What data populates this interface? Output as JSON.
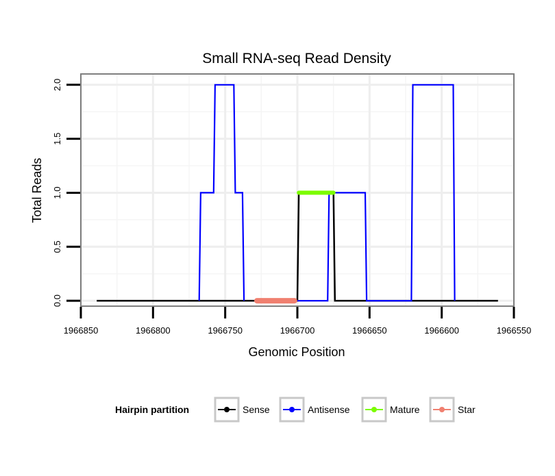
{
  "chart_data": {
    "type": "line",
    "title": "Small RNA-seq Read Density",
    "xlabel": "Genomic Position",
    "ylabel": "Total Reads",
    "xlim": [
      1966850,
      1966550
    ],
    "ylim": [
      -0.05,
      2.1
    ],
    "x_reversed": true,
    "x_ticks": [
      1966850,
      1966800,
      1966750,
      1966700,
      1966650,
      1966600,
      1966550
    ],
    "x_tick_labels": [
      "1966850",
      "1966800",
      "1966750",
      "1966700",
      "1966650",
      "1966600",
      "1966550"
    ],
    "y_ticks": [
      0.0,
      0.5,
      1.0,
      1.5,
      2.0
    ],
    "y_tick_labels": [
      "0.0",
      "0.5",
      "1.0",
      "1.5",
      "2.0"
    ],
    "grid": true,
    "legend": {
      "title": "Hairpin partition",
      "position": "bottom",
      "entries": [
        {
          "name": "Sense",
          "color": "#000000"
        },
        {
          "name": "Antisense",
          "color": "#0000ff"
        },
        {
          "name": "Mature",
          "color": "#7cfc00"
        },
        {
          "name": "Star",
          "color": "#f08070"
        }
      ]
    },
    "series": [
      {
        "name": "Sense",
        "color": "#000000",
        "x": [
          1966839,
          1966700,
          1966699,
          1966675,
          1966674,
          1966561
        ],
        "y": [
          0,
          0,
          1,
          1,
          0,
          0
        ]
      },
      {
        "name": "Antisense",
        "color": "#0000ff",
        "x": [
          1966700,
          1966679,
          1966678,
          1966674,
          1966673,
          1966653,
          1966652,
          1966621,
          1966620,
          1966592,
          1966591
        ],
        "y": [
          0,
          0,
          1,
          1,
          1,
          1,
          0,
          0,
          2,
          2,
          0
        ]
      },
      {
        "name": "Antisense",
        "color": "#0000ff",
        "x": [
          1966768,
          1966767,
          1966758,
          1966757,
          1966744,
          1966743,
          1966738,
          1966737
        ],
        "y": [
          0,
          1,
          1,
          2,
          2,
          1,
          1,
          0
        ]
      },
      {
        "name": "Mature",
        "color": "#7cfc00",
        "x": [
          1966699,
          1966675
        ],
        "y": [
          1,
          1
        ]
      },
      {
        "name": "Star",
        "color": "#f08070",
        "x": [
          1966728,
          1966702
        ],
        "y": [
          0,
          0
        ]
      }
    ]
  }
}
